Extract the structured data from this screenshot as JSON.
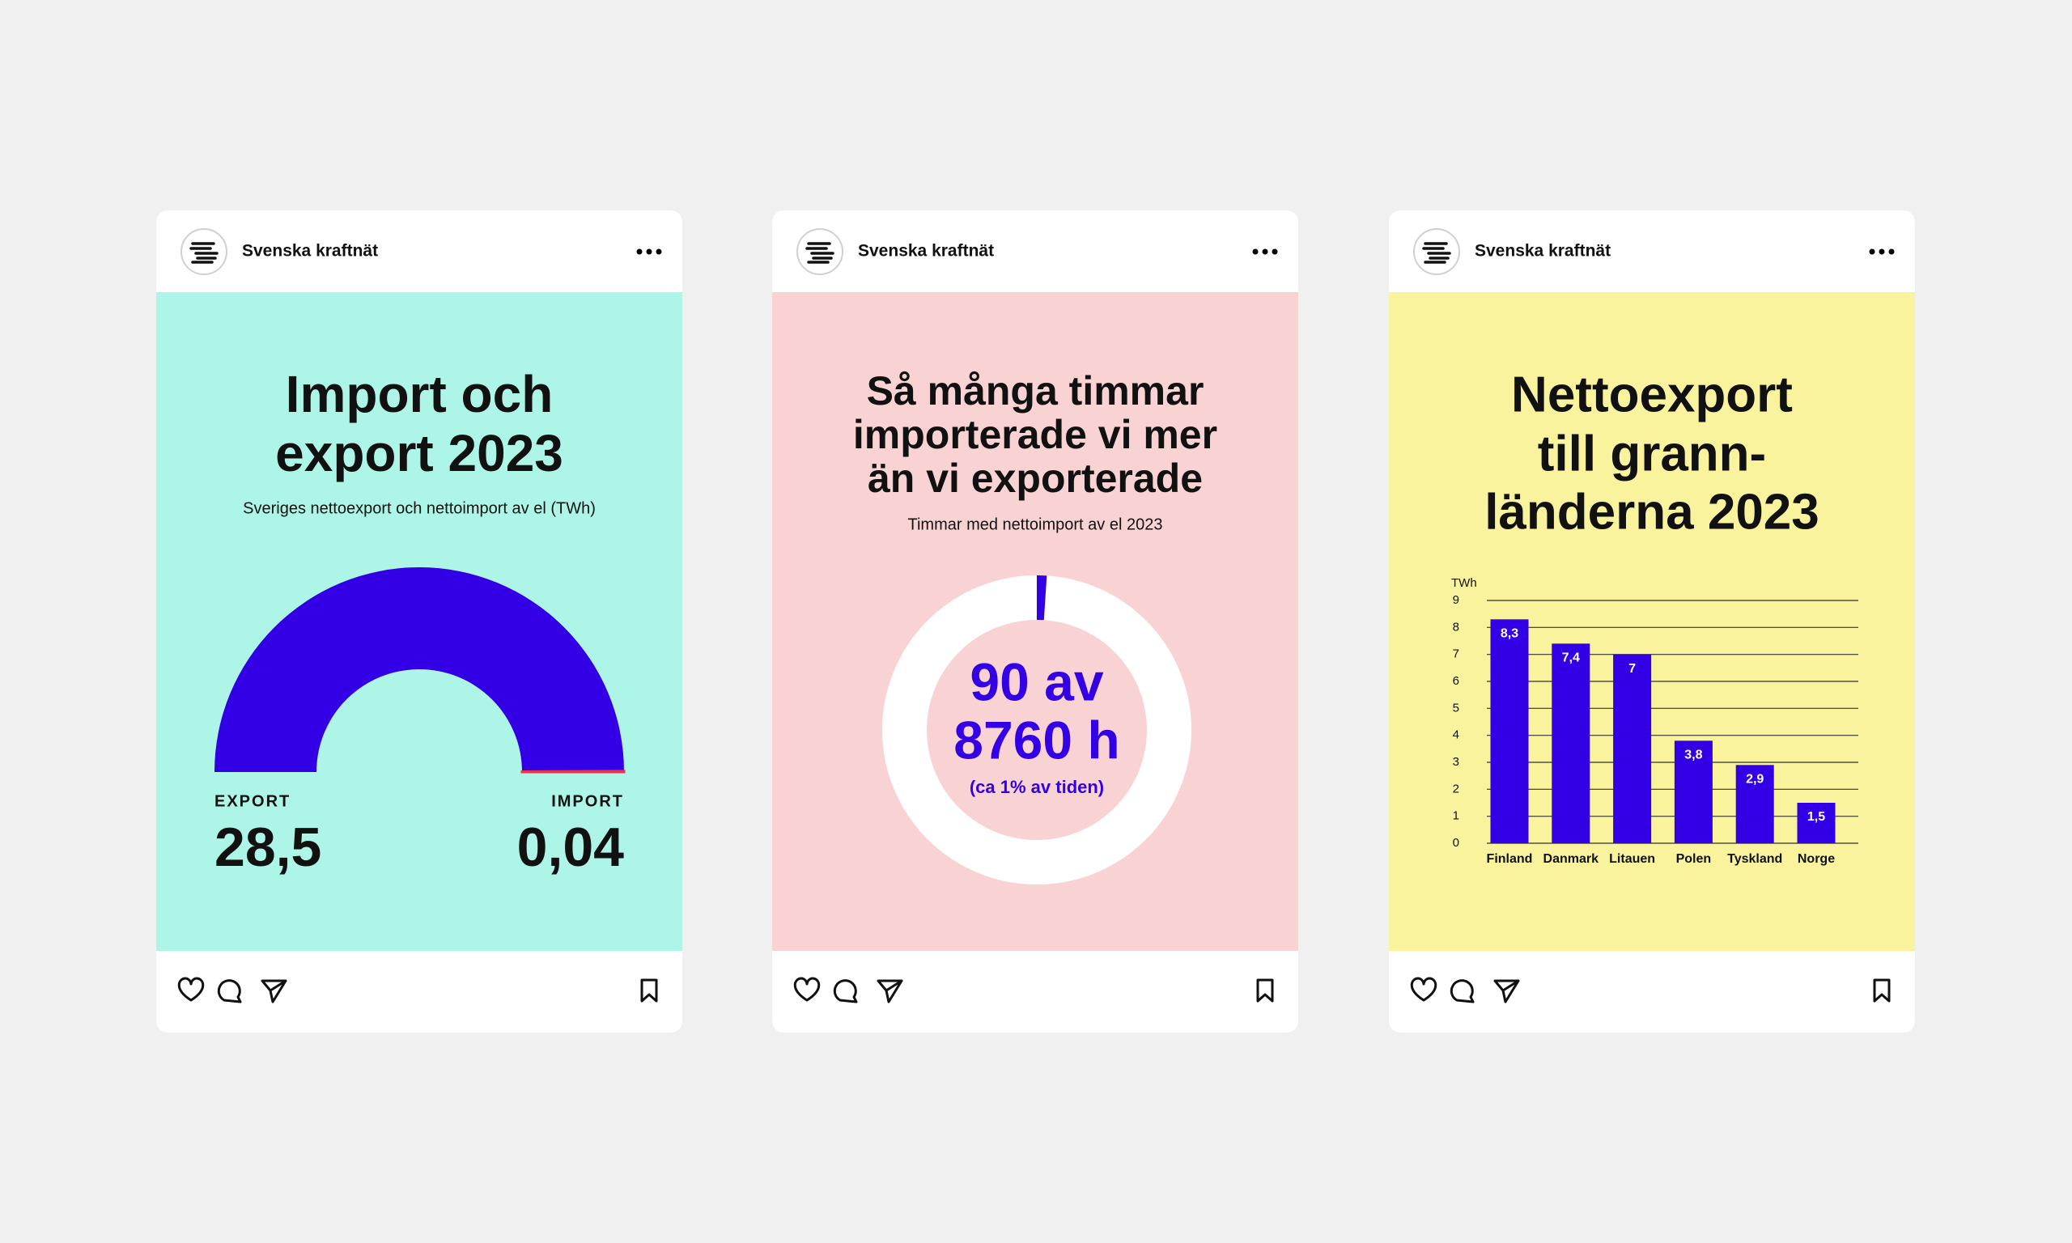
{
  "posts": [
    {
      "account": "Svenska kraftnät"
    },
    {
      "account": "Svenska kraftnät"
    },
    {
      "account": "Svenska kraftnät"
    }
  ],
  "chart_data": [
    {
      "type": "gauge",
      "title": [
        "Import och",
        "export 2023"
      ],
      "subtitle": "Sveriges nettoexport och nettoimport av el (TWh)",
      "categories": [
        "EXPORT",
        "IMPORT"
      ],
      "values": [
        28.5,
        0.04
      ],
      "value_labels": [
        "28,5",
        "0,04"
      ],
      "colors": [
        "#3300e6",
        "#e8334a"
      ]
    },
    {
      "type": "donut",
      "title": [
        "Så många timmar",
        "importerade vi mer",
        "än vi exporterade"
      ],
      "subtitle": "Timmar med nettoimport av el 2023",
      "value": 90,
      "total": 8760,
      "center_text": [
        "90 av",
        "8760 h"
      ],
      "note": "(ca 1% av tiden)",
      "color": "#3300e6"
    },
    {
      "type": "bar",
      "title": [
        "Nettoexport",
        "till grann-",
        "länderna 2023"
      ],
      "y_label": "TWh",
      "categories": [
        "Finland",
        "Danmark",
        "Litauen",
        "Polen",
        "Tyskland",
        "Norge"
      ],
      "values": [
        8.3,
        7.4,
        7,
        3.8,
        2.9,
        1.5
      ],
      "value_labels": [
        "8,3",
        "7,4",
        "7",
        "3,8",
        "2,9",
        "1,5"
      ],
      "color": "#3300e6",
      "ylim": [
        0,
        9
      ],
      "yticks": [
        0,
        1,
        2,
        3,
        4,
        5,
        6,
        7,
        8,
        9
      ],
      "grid": true
    }
  ]
}
